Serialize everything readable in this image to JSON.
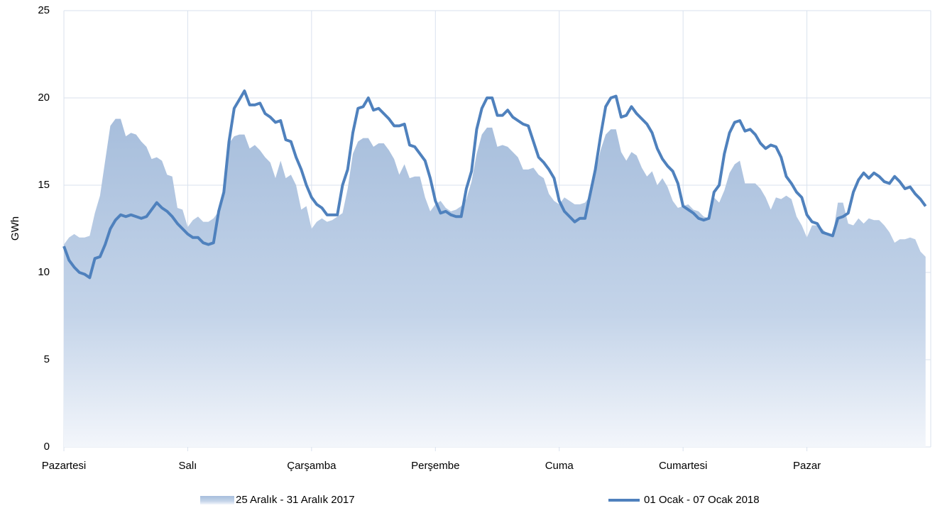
{
  "chart_data": {
    "type": "line",
    "ylabel": "GWh",
    "x": [
      0,
      1,
      2,
      3,
      4,
      5,
      6,
      7,
      8,
      9,
      10,
      11,
      12,
      13,
      14,
      15,
      16,
      17,
      18,
      19,
      20,
      21,
      22,
      23,
      24,
      25,
      26,
      27,
      28,
      29,
      30,
      31,
      32,
      33,
      34,
      35,
      36,
      37,
      38,
      39,
      40,
      41,
      42,
      43,
      44,
      45,
      46,
      47,
      48,
      49,
      50,
      51,
      52,
      53,
      54,
      55,
      56,
      57,
      58,
      59,
      60,
      61,
      62,
      63,
      64,
      65,
      66,
      67,
      68,
      69,
      70,
      71,
      72,
      73,
      74,
      75,
      76,
      77,
      78,
      79,
      80,
      81,
      82,
      83,
      84,
      85,
      86,
      87,
      88,
      89,
      90,
      91,
      92,
      93,
      94,
      95,
      96,
      97,
      98,
      99,
      100,
      101,
      102,
      103,
      104,
      105,
      106,
      107,
      108,
      109,
      110,
      111,
      112,
      113,
      114,
      115,
      116,
      117,
      118,
      119,
      120,
      121,
      122,
      123,
      124,
      125,
      126,
      127,
      128,
      129,
      130,
      131,
      132,
      133,
      134,
      135,
      136,
      137,
      138,
      139,
      140,
      141,
      142,
      143,
      144,
      145,
      146,
      147,
      148,
      149,
      150,
      151,
      152,
      153,
      154,
      155,
      156,
      157,
      158,
      159,
      160,
      161,
      162,
      163,
      164,
      165,
      166,
      167
    ],
    "xlim": [
      0,
      168
    ],
    "xticks": [
      {
        "value": 0,
        "label": "Pazartesi"
      },
      {
        "value": 24,
        "label": "Salı"
      },
      {
        "value": 48,
        "label": "Çarşamba"
      },
      {
        "value": 72,
        "label": "Perşembe"
      },
      {
        "value": 96,
        "label": "Cuma"
      },
      {
        "value": 120,
        "label": "Cumartesi"
      },
      {
        "value": 144,
        "label": "Pazar"
      }
    ],
    "ylim": [
      0,
      25
    ],
    "yticks": [
      0,
      5,
      10,
      15,
      20,
      25
    ],
    "grid": true,
    "series": [
      {
        "name": "25 Aralık - 31 Aralık 2017",
        "type": "area",
        "color": "#a7bedc",
        "values": [
          11.6,
          12.0,
          12.2,
          12.0,
          12.0,
          12.1,
          13.4,
          14.4,
          16.4,
          18.4,
          18.8,
          18.8,
          17.8,
          18.0,
          17.9,
          17.5,
          17.2,
          16.5,
          16.6,
          16.4,
          15.6,
          15.5,
          13.7,
          13.6,
          12.6,
          13.0,
          13.2,
          12.9,
          12.9,
          13.1,
          13.5,
          14.9,
          17.4,
          17.8,
          17.9,
          17.9,
          17.1,
          17.3,
          17.0,
          16.6,
          16.3,
          15.4,
          16.4,
          15.4,
          15.6,
          15.0,
          13.6,
          13.8,
          12.5,
          12.9,
          13.1,
          12.9,
          13.0,
          13.2,
          13.4,
          14.8,
          16.8,
          17.5,
          17.7,
          17.7,
          17.2,
          17.4,
          17.4,
          17.0,
          16.5,
          15.6,
          16.2,
          15.4,
          15.5,
          15.5,
          14.3,
          13.5,
          13.9,
          14.1,
          13.7,
          13.5,
          13.6,
          13.8,
          14.2,
          15.2,
          16.8,
          17.9,
          18.3,
          18.3,
          17.2,
          17.3,
          17.2,
          16.9,
          16.6,
          15.9,
          15.9,
          16.0,
          15.6,
          15.4,
          14.5,
          14.1,
          13.9,
          14.3,
          14.1,
          13.9,
          13.9,
          14.0,
          14.4,
          15.6,
          17.0,
          17.9,
          18.2,
          18.2,
          16.9,
          16.4,
          16.9,
          16.7,
          16.0,
          15.5,
          15.8,
          15.0,
          15.4,
          14.9,
          14.1,
          13.7,
          13.8,
          13.9,
          13.6,
          13.5,
          13.2,
          13.1,
          14.3,
          14.0,
          14.7,
          15.7,
          16.2,
          16.4,
          15.1,
          15.1,
          15.1,
          14.8,
          14.3,
          13.6,
          14.3,
          14.2,
          14.4,
          14.2,
          13.2,
          12.7,
          12.0,
          12.7,
          12.7,
          12.5,
          12.2,
          12.1,
          14.0,
          14.0,
          12.8,
          12.7,
          13.1,
          12.8,
          13.1,
          13.0,
          13.0,
          12.7,
          12.3,
          11.7,
          11.9,
          11.9,
          12.0,
          11.9,
          11.2,
          10.9
        ]
      },
      {
        "name": "01 Ocak - 07 Ocak 2018",
        "type": "line",
        "color": "#4f81bd",
        "values": [
          11.5,
          10.7,
          10.3,
          10.0,
          9.9,
          9.7,
          10.8,
          10.9,
          11.6,
          12.5,
          13.0,
          13.3,
          13.2,
          13.3,
          13.2,
          13.1,
          13.2,
          13.6,
          14.0,
          13.7,
          13.5,
          13.2,
          12.8,
          12.5,
          12.2,
          12.0,
          12.0,
          11.7,
          11.6,
          11.7,
          13.5,
          14.6,
          17.5,
          19.4,
          19.9,
          20.4,
          19.6,
          19.6,
          19.7,
          19.1,
          18.9,
          18.6,
          18.7,
          17.6,
          17.5,
          16.6,
          15.9,
          15.0,
          14.3,
          13.9,
          13.7,
          13.3,
          13.3,
          13.3,
          15.0,
          15.9,
          18.0,
          19.4,
          19.5,
          20.0,
          19.3,
          19.4,
          19.1,
          18.8,
          18.4,
          18.4,
          18.5,
          17.3,
          17.2,
          16.8,
          16.4,
          15.4,
          14.1,
          13.4,
          13.5,
          13.3,
          13.2,
          13.2,
          14.8,
          15.8,
          18.2,
          19.4,
          20.0,
          20.0,
          19.0,
          19.0,
          19.3,
          18.9,
          18.7,
          18.5,
          18.4,
          17.5,
          16.6,
          16.3,
          15.9,
          15.4,
          14.1,
          13.5,
          13.2,
          12.9,
          13.1,
          13.1,
          14.5,
          15.9,
          17.8,
          19.5,
          20.0,
          20.1,
          18.9,
          19.0,
          19.5,
          19.1,
          18.8,
          18.5,
          18.0,
          17.1,
          16.5,
          16.1,
          15.8,
          15.1,
          13.8,
          13.6,
          13.4,
          13.1,
          13.0,
          13.1,
          14.6,
          15.0,
          16.8,
          18.0,
          18.6,
          18.7,
          18.1,
          18.2,
          17.9,
          17.4,
          17.1,
          17.3,
          17.2,
          16.6,
          15.5,
          15.1,
          14.6,
          14.3,
          13.3,
          12.9,
          12.8,
          12.3,
          12.2,
          12.1,
          13.1,
          13.2,
          13.4,
          14.6,
          15.3,
          15.7,
          15.4,
          15.7,
          15.5,
          15.2,
          15.1,
          15.5,
          15.2,
          14.8,
          14.9,
          14.5,
          14.2,
          13.8
        ]
      }
    ]
  }
}
